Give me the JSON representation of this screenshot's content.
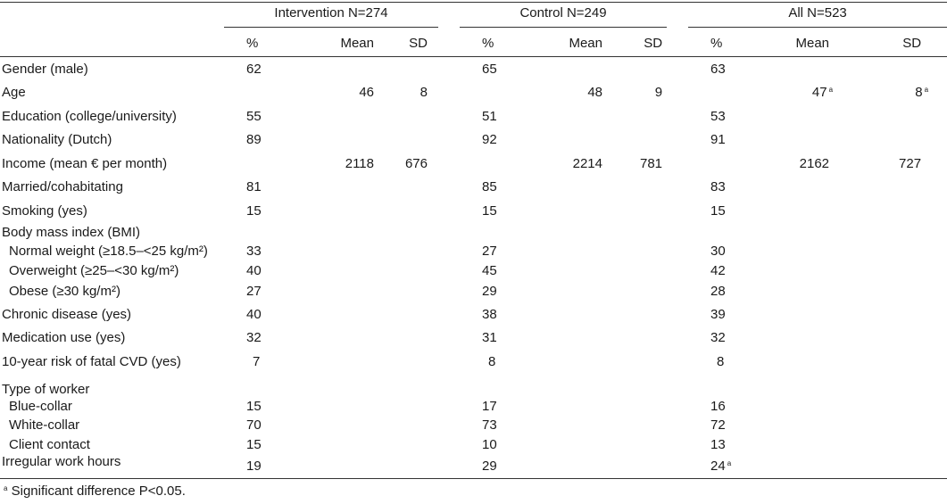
{
  "groups": [
    "Intervention N=274",
    "Control N=249",
    "All N=523"
  ],
  "col_headers": [
    "%",
    "Mean",
    "SD"
  ],
  "rows": [
    {
      "label": "Gender (male)",
      "int_pct": "62",
      "int_mean": "",
      "int_sd": "",
      "con_pct": "65",
      "con_mean": "",
      "con_sd": "",
      "all_pct": "63",
      "all_mean": "",
      "all_sd": ""
    },
    {
      "label": "Age",
      "int_pct": "",
      "int_mean": "46",
      "int_sd": "8",
      "con_pct": "",
      "con_mean": "48",
      "con_sd": "9",
      "all_pct": "",
      "all_mean": "47",
      "all_sd": "8"
    },
    {
      "label": "Education (college/university)",
      "int_pct": "55",
      "int_mean": "",
      "int_sd": "",
      "con_pct": "51",
      "con_mean": "",
      "con_sd": "",
      "all_pct": "53",
      "all_mean": "",
      "all_sd": ""
    },
    {
      "label": "Nationality (Dutch)",
      "int_pct": "89",
      "int_mean": "",
      "int_sd": "",
      "con_pct": "92",
      "con_mean": "",
      "con_sd": "",
      "all_pct": "91",
      "all_mean": "",
      "all_sd": ""
    },
    {
      "label": "Income (mean € per month)",
      "int_pct": "",
      "int_mean": "2118",
      "int_sd": "676",
      "con_pct": "",
      "con_mean": "2214",
      "con_sd": "781",
      "all_pct": "",
      "all_mean": "2162",
      "all_sd": "727"
    },
    {
      "label": "Married/cohabitating",
      "int_pct": "81",
      "int_mean": "",
      "int_sd": "",
      "con_pct": "85",
      "con_mean": "",
      "con_sd": "",
      "all_pct": "83",
      "all_mean": "",
      "all_sd": ""
    },
    {
      "label": "Smoking (yes)",
      "int_pct": "15",
      "int_mean": "",
      "int_sd": "",
      "con_pct": "15",
      "con_mean": "",
      "con_sd": "",
      "all_pct": "15",
      "all_mean": "",
      "all_sd": ""
    },
    {
      "label": "Body mass index (BMI)",
      "int_pct": "",
      "int_mean": "",
      "int_sd": "",
      "con_pct": "",
      "con_mean": "",
      "con_sd": "",
      "all_pct": "",
      "all_mean": "",
      "all_sd": ""
    },
    {
      "label": "Normal weight (≥18.5–<25 kg/m²)",
      "int_pct": "33",
      "int_mean": "",
      "int_sd": "",
      "con_pct": "27",
      "con_mean": "",
      "con_sd": "",
      "all_pct": "30",
      "all_mean": "",
      "all_sd": ""
    },
    {
      "label": "Overweight (≥25–<30 kg/m²)",
      "int_pct": "40",
      "int_mean": "",
      "int_sd": "",
      "con_pct": "45",
      "con_mean": "",
      "con_sd": "",
      "all_pct": "42",
      "all_mean": "",
      "all_sd": ""
    },
    {
      "label": "Obese (≥30 kg/m²)",
      "int_pct": "27",
      "int_mean": "",
      "int_sd": "",
      "con_pct": "29",
      "con_mean": "",
      "con_sd": "",
      "all_pct": "28",
      "all_mean": "",
      "all_sd": ""
    },
    {
      "label": "Chronic disease (yes)",
      "int_pct": "40",
      "int_mean": "",
      "int_sd": "",
      "con_pct": "38",
      "con_mean": "",
      "con_sd": "",
      "all_pct": "39",
      "all_mean": "",
      "all_sd": ""
    },
    {
      "label": "Medication use (yes)",
      "int_pct": "32",
      "int_mean": "",
      "int_sd": "",
      "con_pct": "31",
      "con_mean": "",
      "con_sd": "",
      "all_pct": "32",
      "all_mean": "",
      "all_sd": ""
    },
    {
      "label": "10-year risk of fatal CVD (yes)",
      "int_pct": "7",
      "int_mean": "",
      "int_sd": "",
      "con_pct": "8",
      "con_mean": "",
      "con_sd": "",
      "all_pct": "8",
      "all_mean": "",
      "all_sd": ""
    },
    {
      "label": "Type of worker",
      "int_pct": "",
      "int_mean": "",
      "int_sd": "",
      "con_pct": "",
      "con_mean": "",
      "con_sd": "",
      "all_pct": "",
      "all_mean": "",
      "all_sd": ""
    },
    {
      "label": "Blue-collar",
      "int_pct": "15",
      "int_mean": "",
      "int_sd": "",
      "con_pct": "17",
      "con_mean": "",
      "con_sd": "",
      "all_pct": "16",
      "all_mean": "",
      "all_sd": ""
    },
    {
      "label": "White-collar",
      "int_pct": "70",
      "int_mean": "",
      "int_sd": "",
      "con_pct": "73",
      "con_mean": "",
      "con_sd": "",
      "all_pct": "72",
      "all_mean": "",
      "all_sd": ""
    },
    {
      "label": "Client contact",
      "int_pct": "15",
      "int_mean": "",
      "int_sd": "",
      "con_pct": "10",
      "con_mean": "",
      "con_sd": "",
      "all_pct": "13",
      "all_mean": "",
      "all_sd": ""
    },
    {
      "label": "Irregular work hours",
      "int_pct": "19",
      "int_mean": "",
      "int_sd": "",
      "con_pct": "29",
      "con_mean": "",
      "con_sd": "",
      "all_pct": "24",
      "all_mean": "",
      "all_sd": ""
    }
  ],
  "sup_mark": "a",
  "footnote": "Significant difference P<0.05."
}
